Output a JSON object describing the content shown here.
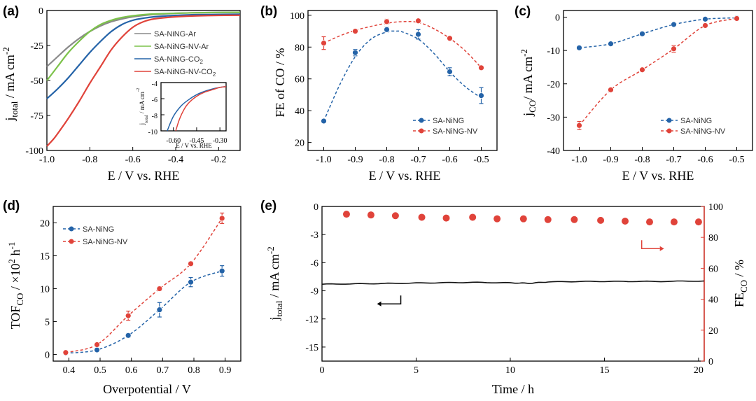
{
  "colors": {
    "blue": "#2463a8",
    "red": "#e0433a",
    "gray": "#8a8a8a",
    "green": "#7cc24a",
    "black": "#111111",
    "fe_red": "#e0433a"
  },
  "chart_data": [
    {
      "id": "a",
      "panel_label": "(a)",
      "type": "line",
      "title": "",
      "xlabel": "E / V vs. RHE",
      "ylabel": "j_total / mA cm^-2",
      "ylabel_parts": {
        "main": "j",
        "sub": "total",
        "rest": " / mA cm",
        "sup": "-2"
      },
      "xlim": [
        -1.0,
        -0.1
      ],
      "ylim": [
        -100,
        0
      ],
      "xticks": [
        -1.0,
        -0.8,
        -0.6,
        -0.4,
        -0.2
      ],
      "xtick_labels": [
        "-1.0",
        "-0.8",
        "-0.6",
        "-0.4",
        "-0.2"
      ],
      "yticks": [
        0,
        -25,
        -50,
        -75,
        -100
      ],
      "ytick_labels": [
        "0",
        "-25",
        "-50",
        "-75",
        "-100"
      ],
      "legend_position": "upper-right",
      "series": [
        {
          "name": "SA-NiNG-Ar",
          "legend_parts": {
            "main": "SA-NiNG-Ar",
            "sub": ""
          },
          "color_key": "gray",
          "x": [
            -1.0,
            -0.95,
            -0.9,
            -0.85,
            -0.8,
            -0.75,
            -0.7,
            -0.65,
            -0.6,
            -0.55,
            -0.5,
            -0.4,
            -0.3,
            -0.2,
            -0.1
          ],
          "y": [
            -40,
            -33,
            -26,
            -20,
            -15,
            -11,
            -8,
            -6,
            -4.5,
            -3.5,
            -2.8,
            -2,
            -1.6,
            -1.4,
            -1.3
          ]
        },
        {
          "name": "SA-NiNG-NV-Ar",
          "legend_parts": {
            "main": "SA-NiNG-NV-Ar",
            "sub": ""
          },
          "color_key": "green",
          "x": [
            -1.0,
            -0.95,
            -0.9,
            -0.85,
            -0.8,
            -0.75,
            -0.7,
            -0.65,
            -0.6,
            -0.55,
            -0.5,
            -0.4,
            -0.3,
            -0.2,
            -0.1
          ],
          "y": [
            -50,
            -40,
            -30,
            -22,
            -15,
            -10,
            -7,
            -5,
            -3.8,
            -3,
            -2.5,
            -2,
            -1.6,
            -1.4,
            -1.3
          ]
        },
        {
          "name": "SA-NiNG-CO2",
          "legend_parts": {
            "main": "SA-NiNG-CO",
            "sub": "2"
          },
          "color_key": "blue",
          "x": [
            -1.0,
            -0.95,
            -0.9,
            -0.85,
            -0.8,
            -0.75,
            -0.7,
            -0.65,
            -0.6,
            -0.55,
            -0.5,
            -0.4,
            -0.3,
            -0.2,
            -0.1
          ],
          "y": [
            -63,
            -56,
            -48,
            -39,
            -30,
            -22,
            -15,
            -10,
            -7,
            -5.5,
            -4.5,
            -3.5,
            -3,
            -2.8,
            -2.7
          ]
        },
        {
          "name": "SA-NiNG-NV-CO2",
          "legend_parts": {
            "main": "SA-NiNG-NV-CO",
            "sub": "2"
          },
          "color_key": "red",
          "x": [
            -1.0,
            -0.97,
            -0.95,
            -0.9,
            -0.85,
            -0.8,
            -0.75,
            -0.7,
            -0.65,
            -0.6,
            -0.55,
            -0.5,
            -0.4,
            -0.3,
            -0.2,
            -0.1
          ],
          "y": [
            -97,
            -92,
            -88,
            -77,
            -65,
            -52,
            -40,
            -28,
            -19,
            -12,
            -8,
            -6,
            -4.5,
            -3.8,
            -3.5,
            -3.4
          ]
        }
      ],
      "inset": {
        "xlabel": "E / V vs. RHE",
        "ylabel": "j_total / mA cm^-2",
        "ylabel_parts": {
          "main": "j",
          "sub": "total",
          "rest": " / mA cm",
          "sup": "-2"
        },
        "xlim": [
          -0.68,
          -0.26
        ],
        "ylim": [
          -10,
          -4
        ],
        "xticks": [
          -0.6,
          -0.45,
          -0.3
        ],
        "xtick_labels": [
          "-0.60",
          "-0.45",
          "-0.30"
        ],
        "yticks": [
          -4,
          -6,
          -8,
          -10
        ],
        "ytick_labels": [
          "-4",
          "-6",
          "-8",
          "-10"
        ],
        "series": [
          {
            "name": "SA-NiNG-CO2",
            "color_key": "blue",
            "x": [
              -0.64,
              -0.6,
              -0.55,
              -0.5,
              -0.45,
              -0.4,
              -0.35,
              -0.3,
              -0.26
            ],
            "y": [
              -10,
              -8.2,
              -6.9,
              -6.1,
              -5.5,
              -5.1,
              -4.8,
              -4.6,
              -4.5
            ]
          },
          {
            "name": "SA-NiNG-NV-CO2",
            "color_key": "red",
            "x": [
              -0.585,
              -0.56,
              -0.53,
              -0.5,
              -0.45,
              -0.4,
              -0.35,
              -0.3,
              -0.26
            ],
            "y": [
              -10,
              -8.5,
              -7.3,
              -6.5,
              -5.7,
              -5.2,
              -4.9,
              -4.6,
              -4.5
            ]
          }
        ]
      }
    },
    {
      "id": "b",
      "panel_label": "(b)",
      "type": "scatter",
      "title": "",
      "xlabel": "E / V vs. RHE",
      "ylabel": "FE of CO / %",
      "ylabel_parts": {
        "main": "FE of CO / %",
        "sub": "",
        "rest": "",
        "sup": ""
      },
      "xlim": [
        -1.05,
        -0.45
      ],
      "ylim": [
        15,
        103
      ],
      "xticks": [
        -1.0,
        -0.9,
        -0.8,
        -0.7,
        -0.6,
        -0.5
      ],
      "xtick_labels": [
        "-1.0",
        "-0.9",
        "-0.8",
        "-0.7",
        "-0.6",
        "-0.5"
      ],
      "yticks": [
        20,
        40,
        60,
        80,
        100
      ],
      "ytick_labels": [
        "20",
        "40",
        "60",
        "80",
        "100"
      ],
      "legend_position": "lower-right",
      "series": [
        {
          "name": "SA-NiNG",
          "legend_parts": {
            "main": "SA-NiNG",
            "sub": ""
          },
          "color_key": "blue",
          "x": [
            -1.0,
            -0.9,
            -0.8,
            -0.7,
            -0.6,
            -0.5
          ],
          "y": [
            33.5,
            76.5,
            91,
            88,
            64.5,
            49.5
          ],
          "err": [
            1,
            2,
            1.5,
            3,
            2.5,
            5
          ],
          "fit_x": [
            -1.0,
            -0.95,
            -0.9,
            -0.85,
            -0.8,
            -0.77,
            -0.75,
            -0.7,
            -0.65,
            -0.6,
            -0.55,
            -0.5
          ],
          "fit_y": [
            33.5,
            56,
            74,
            85,
            89.5,
            90,
            89.5,
            85,
            76,
            64.5,
            55,
            48
          ]
        },
        {
          "name": "SA-NiNG-NV",
          "legend_parts": {
            "main": "SA-NiNG-NV",
            "sub": ""
          },
          "color_key": "red",
          "x": [
            -1.0,
            -0.9,
            -0.8,
            -0.7,
            -0.6,
            -0.5
          ],
          "y": [
            82.5,
            90,
            96,
            96.5,
            85.5,
            67
          ],
          "err": [
            4,
            1,
            1.5,
            1,
            1,
            1
          ],
          "fit_x": [
            -1.0,
            -0.95,
            -0.9,
            -0.85,
            -0.8,
            -0.75,
            -0.7,
            -0.65,
            -0.6,
            -0.55,
            -0.5
          ],
          "fit_y": [
            82.5,
            87,
            90.5,
            93,
            95,
            96,
            95.5,
            91.5,
            85.5,
            77.5,
            67
          ]
        }
      ]
    },
    {
      "id": "c",
      "panel_label": "(c)",
      "type": "scatter",
      "title": "",
      "xlabel": "E / V vs. RHE",
      "ylabel": "j_CO / mA cm^-2",
      "ylabel_parts": {
        "main": "j",
        "sub": "CO",
        "rest": "/ mA cm",
        "sup": "-2"
      },
      "xlim": [
        -1.05,
        -0.45
      ],
      "ylim": [
        -40,
        2
      ],
      "xticks": [
        -1.0,
        -0.9,
        -0.8,
        -0.7,
        -0.6,
        -0.5
      ],
      "xtick_labels": [
        "-1.0",
        "-0.9",
        "-0.8",
        "-0.7",
        "-0.6",
        "-0.5"
      ],
      "yticks": [
        0,
        -10,
        -20,
        -30,
        -40
      ],
      "ytick_labels": [
        "0",
        "-10",
        "-20",
        "-30",
        "-40"
      ],
      "legend_position": "lower-right",
      "series": [
        {
          "name": "SA-NiNG",
          "legend_parts": {
            "main": "SA-NiNG",
            "sub": ""
          },
          "color_key": "blue",
          "x": [
            -1.0,
            -0.9,
            -0.8,
            -0.7,
            -0.6,
            -0.5
          ],
          "y": [
            -9.2,
            -8,
            -5,
            -2.2,
            -0.6,
            -0.2
          ],
          "err": [
            0.5,
            0.4,
            0.6,
            0.4,
            0.2,
            0.1
          ]
        },
        {
          "name": "SA-NiNG-NV",
          "legend_parts": {
            "main": "SA-NiNG-NV",
            "sub": ""
          },
          "color_key": "red",
          "x": [
            -1.0,
            -0.9,
            -0.8,
            -0.7,
            -0.6,
            -0.5
          ],
          "y": [
            -32.5,
            -21.8,
            -15.8,
            -9.5,
            -2.5,
            -0.4
          ],
          "err": [
            1.2,
            0.5,
            0.5,
            1,
            0.3,
            0.2
          ]
        }
      ]
    },
    {
      "id": "d",
      "panel_label": "(d)",
      "type": "scatter",
      "title": "",
      "xlabel": "Overpotential / V",
      "ylabel": "TOF_CO / ×10^2 h^-1",
      "ylabel_parts": {
        "main": "TOF",
        "sub": "CO",
        "rest": " / ×10",
        "sup": "2",
        "rest2": " h",
        "sup2": "-1"
      },
      "xlim": [
        0.35,
        0.95
      ],
      "ylim": [
        -1,
        22.5
      ],
      "xticks": [
        0.4,
        0.5,
        0.6,
        0.7,
        0.8,
        0.9
      ],
      "xtick_labels": [
        "0.4",
        "0.5",
        "0.6",
        "0.7",
        "0.8",
        "0.9"
      ],
      "yticks": [
        0,
        5,
        10,
        15,
        20
      ],
      "ytick_labels": [
        "0",
        "5",
        "10",
        "15",
        "20"
      ],
      "legend_position": "upper-left",
      "series": [
        {
          "name": "SA-NiNG",
          "legend_parts": {
            "main": "SA-NiNG",
            "sub": ""
          },
          "color_key": "blue",
          "x": [
            0.39,
            0.49,
            0.59,
            0.69,
            0.79,
            0.89
          ],
          "y": [
            0.2,
            0.7,
            2.9,
            6.8,
            11,
            12.7
          ],
          "err": [
            0.2,
            0.2,
            0.3,
            1.1,
            0.7,
            0.8
          ]
        },
        {
          "name": "SA-NiNG-NV",
          "legend_parts": {
            "main": "SA-NiNG-NV",
            "sub": ""
          },
          "color_key": "red",
          "x": [
            0.39,
            0.49,
            0.59,
            0.69,
            0.79,
            0.89
          ],
          "y": [
            0.3,
            1.5,
            5.9,
            10,
            13.8,
            20.7
          ],
          "err": [
            0.2,
            0.3,
            0.7,
            0.3,
            0.3,
            0.8
          ]
        }
      ]
    },
    {
      "id": "e",
      "panel_label": "(e)",
      "type": "line",
      "title": "",
      "xlabel": "Time / h",
      "ylabel": "j_total / mA cm^-2",
      "ylabel_parts": {
        "main": "j",
        "sub": "total",
        "rest": " / mA cm",
        "sup": "-2"
      },
      "y2label": "FE_CO / %",
      "y2label_parts": {
        "main": "FE",
        "sub": "CO",
        "rest": " / %"
      },
      "xlim": [
        0,
        20.3
      ],
      "ylim": [
        -16.5,
        0
      ],
      "y2lim": [
        0,
        100
      ],
      "xticks": [
        0,
        5,
        10,
        15,
        20
      ],
      "xtick_labels": [
        "0",
        "5",
        "10",
        "15",
        "20"
      ],
      "yticks": [
        0,
        -3,
        -6,
        -9,
        -12,
        -15
      ],
      "ytick_labels": [
        "0",
        "-3",
        "-6",
        "-9",
        "-12",
        "-15"
      ],
      "y2ticks": [
        0,
        20,
        40,
        60,
        80,
        100
      ],
      "y2tick_labels": [
        "0",
        "20",
        "40",
        "60",
        "80",
        "100"
      ],
      "current": {
        "name": "j_total",
        "color_key": "black",
        "x": [
          0,
          2,
          4,
          6,
          8,
          10,
          11,
          12,
          14,
          16,
          18,
          20.3
        ],
        "y": [
          -8.3,
          -8.25,
          -8.2,
          -8.15,
          -8.1,
          -8.15,
          -8.2,
          -8.05,
          -8.0,
          -8.0,
          -8.0,
          -7.95
        ]
      },
      "fe": {
        "name": "FE_CO",
        "color_key": "fe_red",
        "x": [
          1.3,
          2.6,
          3.9,
          5.3,
          6.6,
          8.0,
          9.3,
          10.7,
          12.0,
          13.4,
          14.8,
          16.1,
          17.4,
          18.7,
          20.0
        ],
        "y": [
          95,
          94.5,
          94,
          93,
          92.5,
          93,
          92,
          92,
          91.5,
          91.5,
          91,
          90.5,
          90,
          90,
          90
        ]
      },
      "arrows": [
        {
          "points_to": "left-axis",
          "near": [
            0.6,
            0.71
          ]
        },
        {
          "points_to": "right-axis",
          "near": [
            0.9,
            0.27
          ]
        }
      ]
    }
  ]
}
